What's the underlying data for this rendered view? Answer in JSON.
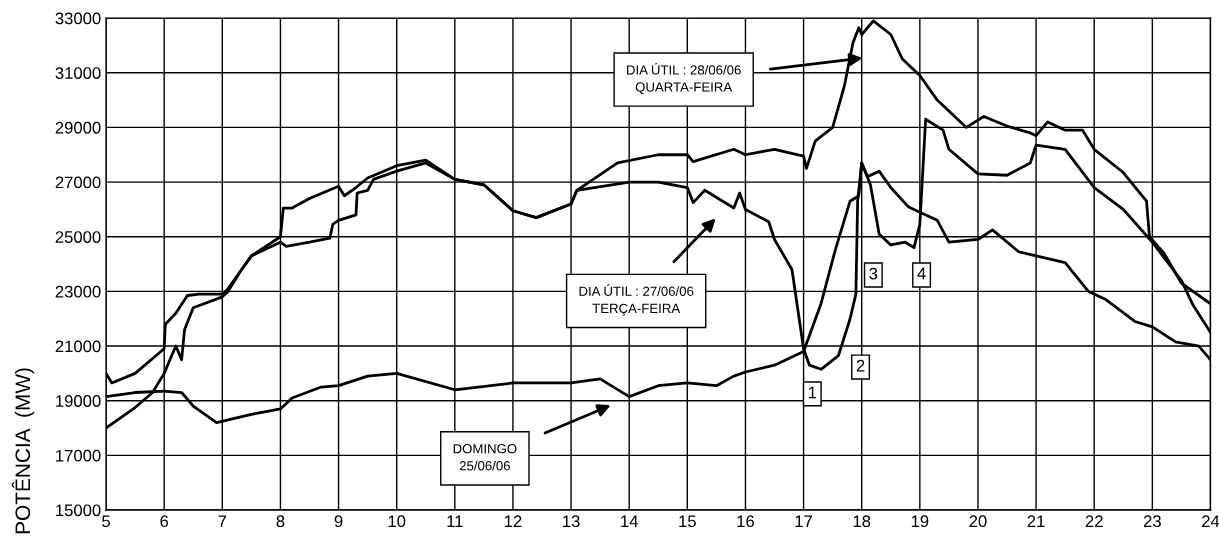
{
  "chart_data": {
    "type": "line",
    "ylabel": "POTÊNCIA  (MW)",
    "xlim": [
      5,
      24
    ],
    "xticks": [
      5,
      6,
      7,
      8,
      9,
      10,
      11,
      12,
      13,
      14,
      15,
      16,
      17,
      18,
      19,
      20,
      21,
      22,
      23,
      24
    ],
    "ylim": [
      15000,
      33000
    ],
    "yticks": [
      15000,
      17000,
      19000,
      21000,
      23000,
      25000,
      27000,
      29000,
      31000,
      33000
    ],
    "grid": true,
    "legend": false,
    "marker": "none",
    "line_style": "solid",
    "series": [
      {
        "color": "#000000",
        "x": [
          5,
          5.1,
          5.5,
          6,
          6.02,
          6.2,
          6.4,
          6.6,
          7,
          7.1,
          7.3,
          7.5,
          8,
          8.05,
          8.2,
          8.5,
          9,
          9.1,
          9.3,
          9.5,
          10,
          10.5,
          11,
          11.5,
          12,
          12.4,
          13,
          13.1,
          13.8,
          14.5,
          15,
          15.1,
          15.8,
          16,
          16.5,
          17,
          17.05,
          17.2,
          17.5,
          17.7,
          17.85,
          17.95,
          18,
          18.2,
          18.5,
          18.7,
          19,
          19.3,
          19.8,
          20.1,
          20.5,
          20.9,
          21,
          21.2,
          21.5,
          21.8,
          22,
          22.5,
          22.9,
          22.95,
          23.2,
          23.5,
          24
        ],
        "values": [
          20000,
          19650,
          20000,
          20900,
          21800,
          22200,
          22850,
          22900,
          22900,
          23100,
          23700,
          24300,
          25000,
          26050,
          26050,
          26400,
          26850,
          26500,
          26800,
          27150,
          27600,
          27800,
          27100,
          26900,
          25950,
          25700,
          26200,
          26700,
          27700,
          28000,
          28000,
          27750,
          28200,
          28000,
          28200,
          27950,
          27500,
          28500,
          29000,
          30500,
          32100,
          32650,
          32400,
          32900,
          32400,
          31500,
          30900,
          30000,
          29000,
          29400,
          29050,
          28800,
          28700,
          29200,
          28900,
          28900,
          28200,
          27350,
          26300,
          25000,
          24400,
          23300,
          22550
        ]
      },
      {
        "color": "#000000",
        "x": [
          5,
          5.5,
          5.8,
          6,
          6.2,
          6.3,
          6.35,
          6.5,
          7,
          7.1,
          7.3,
          7.5,
          8,
          8.1,
          8.5,
          8.85,
          8.9,
          9,
          9.3,
          9.32,
          9.5,
          9.6,
          10,
          10.5,
          11,
          11.5,
          12,
          12.4,
          13,
          13.1,
          14,
          14.5,
          15,
          15.1,
          15.3,
          15.8,
          15.9,
          16,
          16.4,
          16.5,
          16.8,
          17,
          17.1,
          17.3,
          17.6,
          17.8,
          17.9,
          17.93,
          18,
          18.15,
          18.3,
          18.5,
          18.75,
          18.9,
          19,
          19.1,
          19.4,
          19.5,
          20,
          20.5,
          20.9,
          21,
          21.5,
          22,
          22.5,
          23,
          23.5,
          23.7,
          24
        ],
        "values": [
          18000,
          18750,
          19300,
          20000,
          21000,
          20500,
          21600,
          22400,
          22800,
          23000,
          23700,
          24300,
          24800,
          24650,
          24800,
          24950,
          25450,
          25600,
          25800,
          26600,
          26700,
          27100,
          27400,
          27700,
          27100,
          26900,
          25950,
          25700,
          26200,
          26700,
          27000,
          27000,
          26800,
          26250,
          26700,
          26050,
          26600,
          26000,
          25550,
          24900,
          23800,
          20900,
          20300,
          20150,
          20650,
          22000,
          22900,
          26300,
          27700,
          26900,
          25100,
          24700,
          24800,
          24600,
          25450,
          29300,
          28900,
          28200,
          27300,
          27250,
          27700,
          28350,
          28200,
          26800,
          26000,
          24800,
          23400,
          22500,
          21500
        ]
      },
      {
        "color": "#000000",
        "x": [
          5,
          5.5,
          6,
          6.3,
          6.5,
          6.9,
          7.5,
          8,
          8.2,
          8.7,
          9,
          9.5,
          10,
          11,
          12,
          13,
          13.5,
          14,
          14.5,
          15,
          15.5,
          15.8,
          16,
          16.5,
          17,
          17.3,
          17.55,
          17.8,
          17.95,
          18,
          18.1,
          18.3,
          18.5,
          18.8,
          19,
          19.3,
          19.5,
          20,
          20.25,
          20.7,
          21,
          21.5,
          21.9,
          22.2,
          22.7,
          23,
          23.4,
          23.8,
          24
        ],
        "values": [
          19150,
          19300,
          19350,
          19300,
          18800,
          18200,
          18500,
          18700,
          19100,
          19500,
          19550,
          19900,
          20000,
          19400,
          19650,
          19650,
          19800,
          19150,
          19550,
          19650,
          19550,
          19900,
          20050,
          20300,
          20800,
          22550,
          24550,
          26300,
          26500,
          27700,
          27200,
          27400,
          26800,
          26100,
          25900,
          25600,
          24800,
          24900,
          25250,
          24450,
          24300,
          24050,
          23000,
          22700,
          21900,
          21700,
          21150,
          21000,
          20500
        ]
      }
    ],
    "annotations": [
      "DIA ÚTIL : 28/06/06\nQUARTA-FEIRA",
      "DIA ÚTIL : 27/06/06\nTERÇA-FEIRA",
      "DOMINGO\n25/06/06",
      {
        "text": "1",
        "x": 17.15,
        "y": 19250
      },
      {
        "text": "2",
        "x": 17.98,
        "y": 20230
      },
      {
        "text": "3",
        "x": 18.2,
        "y": 23600
      },
      {
        "text": "4",
        "x": 19.03,
        "y": 23600
      }
    ]
  }
}
